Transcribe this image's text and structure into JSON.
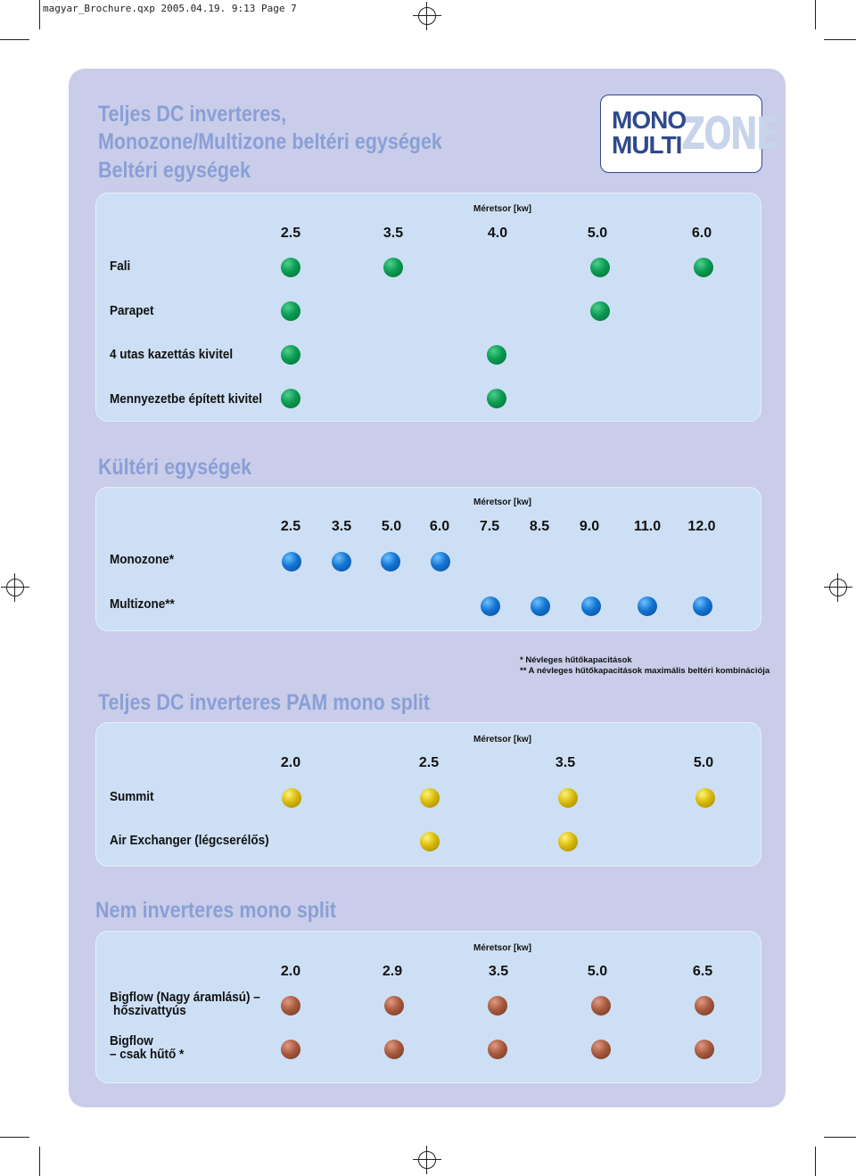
{
  "slug": "magyar_Brochure.qxp  2005.04.19.  9:13  Page 7",
  "logo": {
    "line1": "MONO",
    "line2": "MULTI",
    "accent": "ZONE"
  },
  "title": {
    "line1": "Teljes DC inverteres,",
    "line2": "Monozone/Multizone beltéri egységek",
    "line3": "Beltéri egységek"
  },
  "meretsor_label": "Méretsor [kw]",
  "indoor": {
    "sizes": [
      "2.5",
      "3.5",
      "4.0",
      "5.0",
      "6.0"
    ],
    "rows": [
      {
        "label": "Fali",
        "available": [
          "2.5",
          "3.5",
          "5.0",
          "6.0"
        ]
      },
      {
        "label": "Parapet",
        "available": [
          "2.5",
          "5.0"
        ]
      },
      {
        "label": "4 utas kazettás kivitel",
        "available": [
          "2.5",
          "4.0"
        ]
      },
      {
        "label": "Mennyezetbe épített kivitel",
        "available": [
          "2.5",
          "4.0"
        ]
      }
    ]
  },
  "outdoor": {
    "heading": "Kültéri egységek",
    "sizes": [
      "2.5",
      "3.5",
      "5.0",
      "6.0",
      "7.5",
      "8.5",
      "9.0",
      "11.0",
      "12.0"
    ],
    "rows": [
      {
        "label": "Monozone*",
        "available": [
          "2.5",
          "3.5",
          "5.0",
          "6.0"
        ]
      },
      {
        "label": "Multizone**",
        "available": [
          "7.5",
          "8.5",
          "9.0",
          "11.0",
          "12.0"
        ]
      }
    ]
  },
  "notes": {
    "line1": "* Névleges hűtőkapacitások",
    "line2": "** A névleges hűtőkapacitások maximális beltéri kombinációja"
  },
  "pam": {
    "heading": "Teljes DC inverteres PAM mono split",
    "sizes": [
      "2.0",
      "2.5",
      "3.5",
      "5.0"
    ],
    "rows": [
      {
        "label": "Summit",
        "available": [
          "2.0",
          "2.5",
          "3.5",
          "5.0"
        ]
      },
      {
        "label": "Air Exchanger (légcserélős)",
        "available": [
          "2.5",
          "3.5"
        ]
      }
    ]
  },
  "noninv": {
    "heading": "Nem inverteres mono split",
    "sizes": [
      "2.0",
      "2.9",
      "3.5",
      "5.0",
      "6.5"
    ],
    "rows": [
      {
        "label_line1": "Bigflow (Nagy áramlású) –",
        "label_line2": "hőszivattyús",
        "available": [
          "2.0",
          "2.9",
          "3.5",
          "5.0",
          "6.5"
        ]
      },
      {
        "label_line1": "Bigflow",
        "label_line2": "– csak hűtő *",
        "available": [
          "2.0",
          "2.9",
          "3.5",
          "5.0",
          "6.5"
        ]
      }
    ]
  },
  "colors": {
    "sheet": "#c9cde9",
    "panel": "#cddff4",
    "heading": "#8a9fd6",
    "indoor_dot": "#0a9b52",
    "outdoor_dot": "#1474d2",
    "pam_dot": "#d9bb0a",
    "noninv_dot": "#a85a3f"
  }
}
